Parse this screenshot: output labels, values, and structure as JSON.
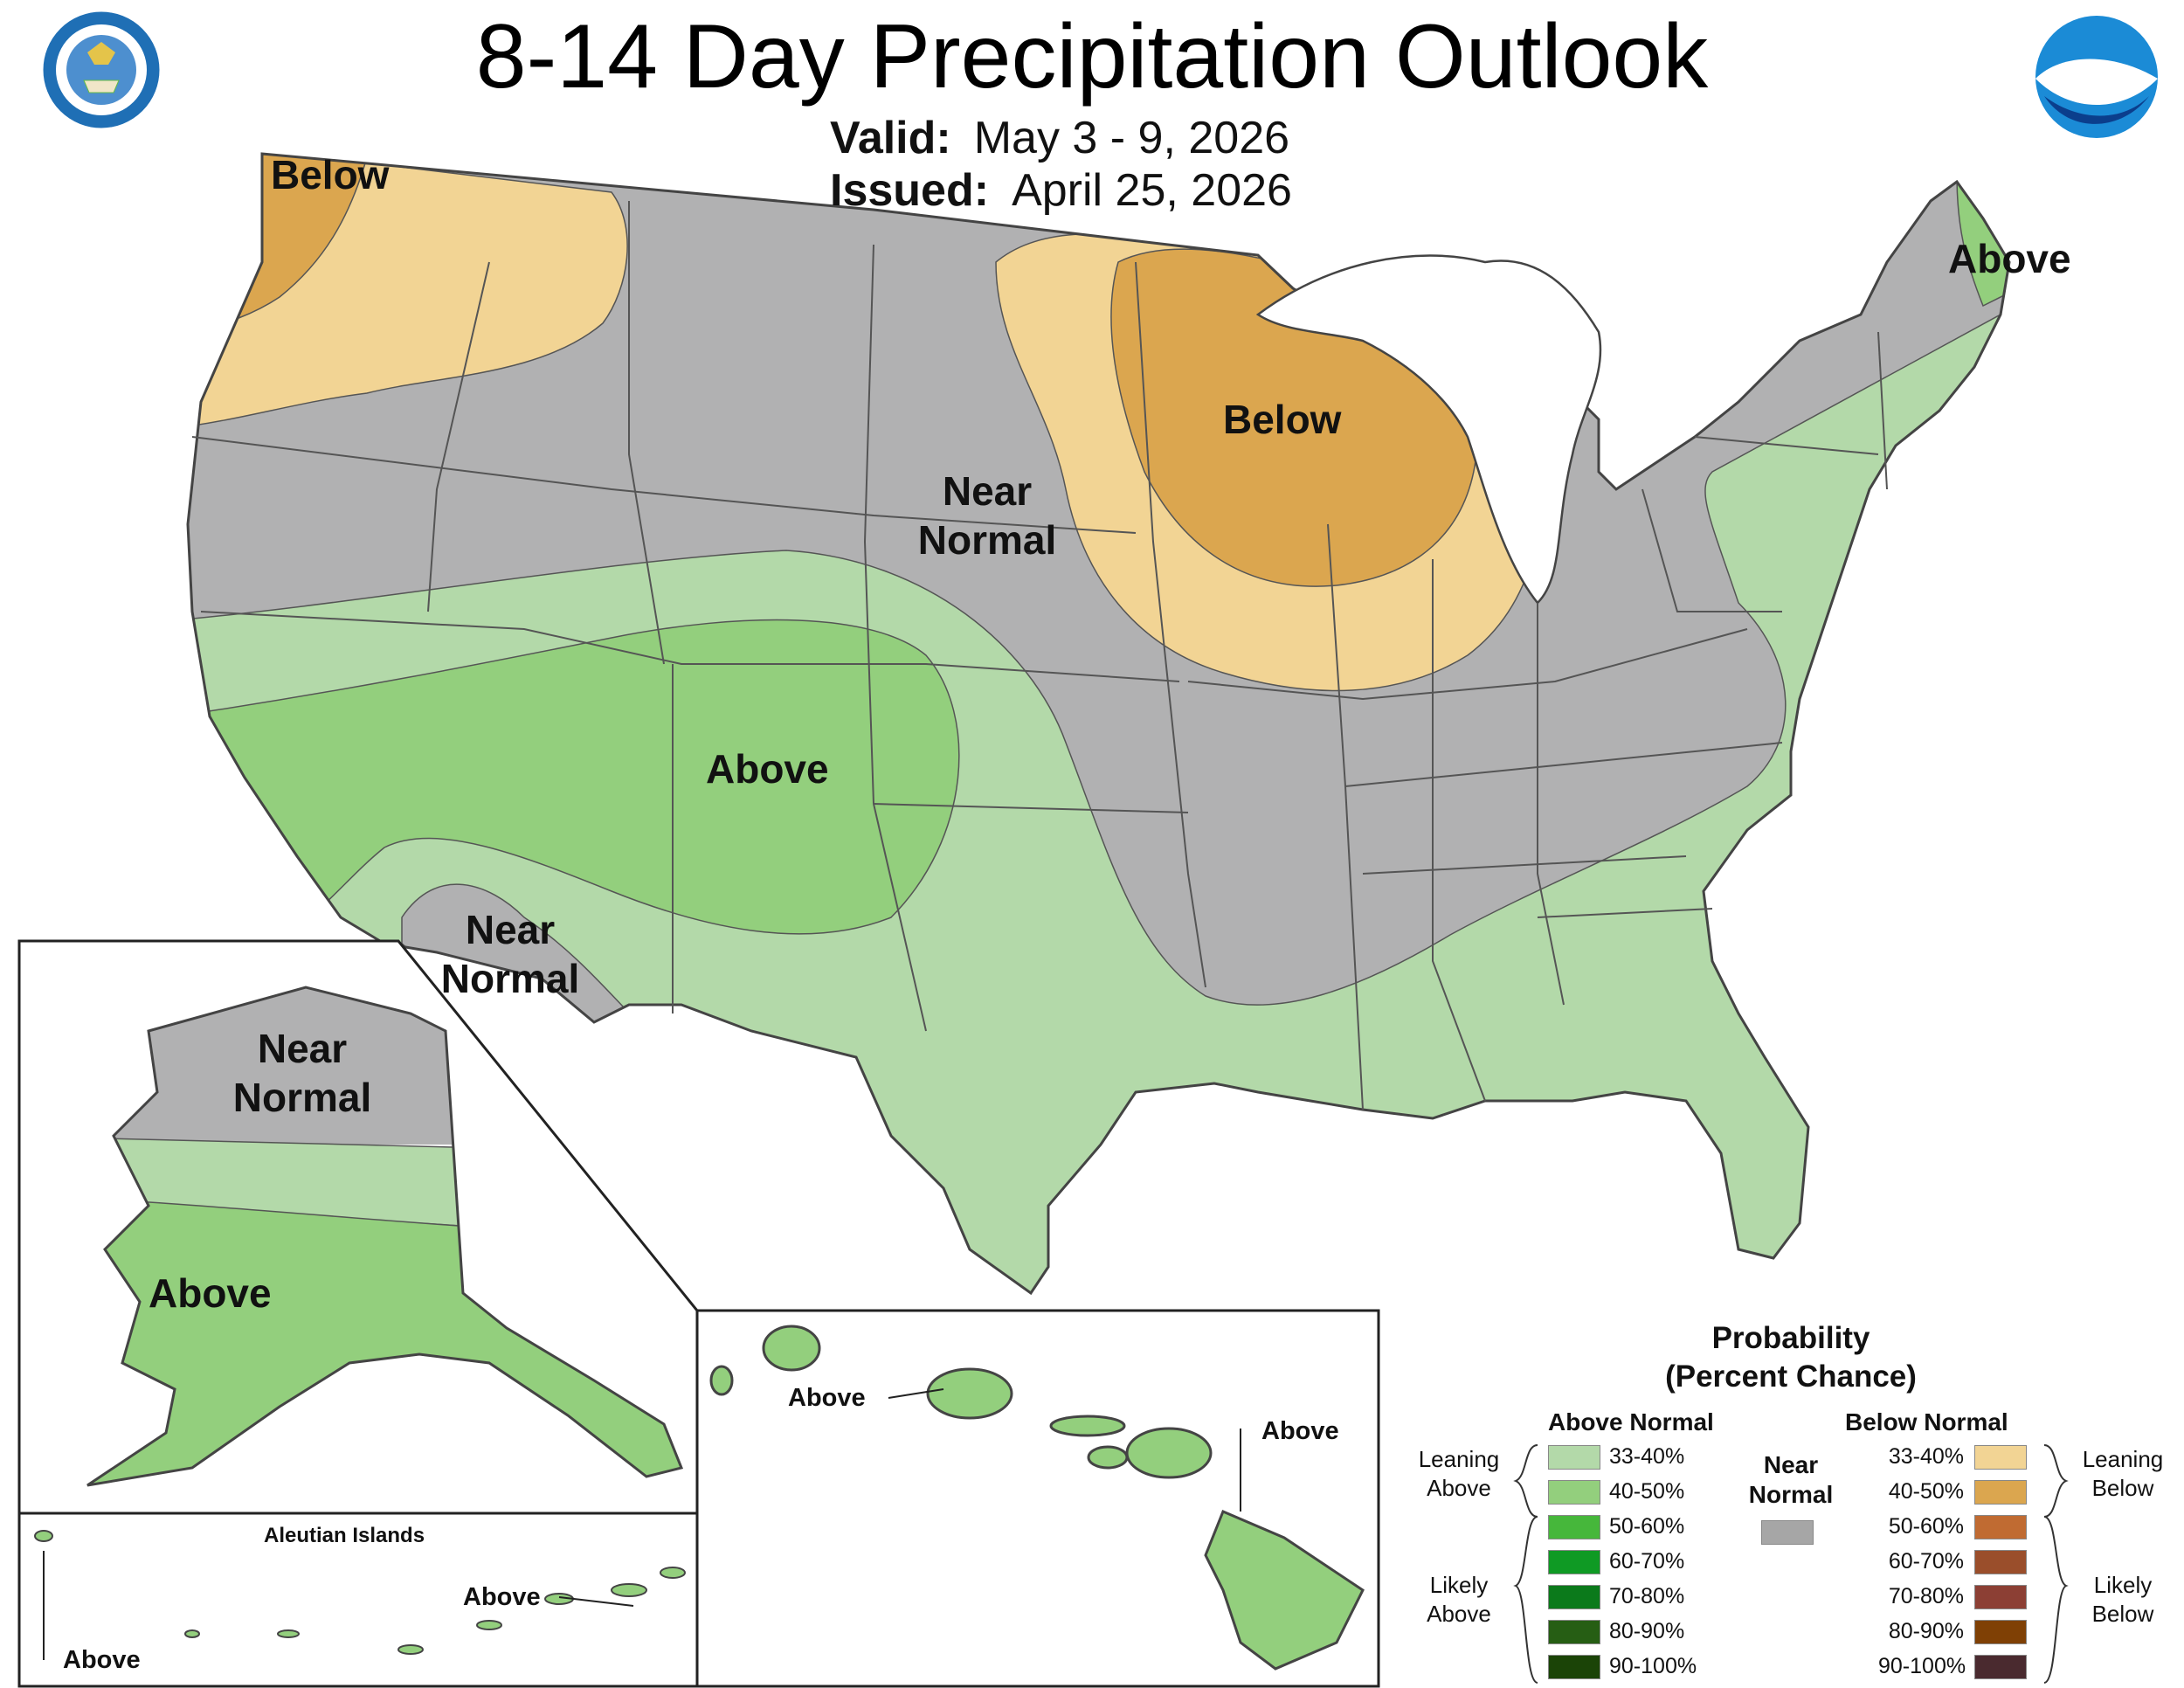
{
  "header": {
    "title": "8-14 Day Precipitation Outlook",
    "valid_key": "Valid:",
    "valid_value": "May 3 - 9, 2026",
    "issued_key": "Issued:",
    "issued_value": "April 25, 2026"
  },
  "logos": {
    "commerce_seal_text": "DEPARTMENT OF COMMERCE · UNITED STATES OF AMERICA",
    "noaa_text": "NOAA"
  },
  "map_labels": {
    "nw_below": "Below",
    "ne_above": "Above",
    "mw_below": "Below",
    "central_near_1": "Near",
    "central_near_2": "Normal",
    "sw_above": "Above",
    "az_near_1": "Near",
    "az_near_2": "Normal"
  },
  "alaska": {
    "near_1": "Near",
    "near_2": "Normal",
    "above": "Above",
    "aleutian_title": "Aleutian Islands",
    "aleutian_above_1": "Above",
    "aleutian_above_2": "Above"
  },
  "hawaii": {
    "above_1": "Above",
    "above_2": "Above"
  },
  "legend": {
    "title_1": "Probability",
    "title_2": "(Percent Chance)",
    "above_header": "Above Normal",
    "below_header": "Below Normal",
    "near_header_1": "Near",
    "near_header_2": "Normal",
    "leaning_above_1": "Leaning",
    "leaning_above_2": "Above",
    "likely_above_1": "Likely",
    "likely_above_2": "Above",
    "leaning_below_1": "Leaning",
    "leaning_below_2": "Below",
    "likely_below_1": "Likely",
    "likely_below_2": "Below",
    "above_rows": [
      {
        "label": "33-40%",
        "color": "#b3d9a9"
      },
      {
        "label": "40-50%",
        "color": "#93cf7d"
      },
      {
        "label": "50-60%",
        "color": "#46b73b"
      },
      {
        "label": "60-70%",
        "color": "#0f9a24"
      },
      {
        "label": "70-80%",
        "color": "#0b7a1b"
      },
      {
        "label": "80-90%",
        "color": "#265e14"
      },
      {
        "label": "90-100%",
        "color": "#1b4407"
      }
    ],
    "below_rows": [
      {
        "label": "33-40%",
        "color": "#f2d494"
      },
      {
        "label": "40-50%",
        "color": "#dba64f"
      },
      {
        "label": "50-60%",
        "color": "#c06b32"
      },
      {
        "label": "60-70%",
        "color": "#9a4e2b"
      },
      {
        "label": "70-80%",
        "color": "#8c3f34"
      },
      {
        "label": "80-90%",
        "color": "#7f4005"
      },
      {
        "label": "90-100%",
        "color": "#4a2a2f"
      }
    ],
    "near_color": "#a6a6a6"
  },
  "colors": {
    "near_normal": "#b1b1b2",
    "above_33_40": "#b3d9a9",
    "above_40_50": "#93cf7d",
    "below_33_40": "#f2d494",
    "below_40_50": "#dba64f",
    "border": "#444444",
    "water": "#ffffff"
  }
}
